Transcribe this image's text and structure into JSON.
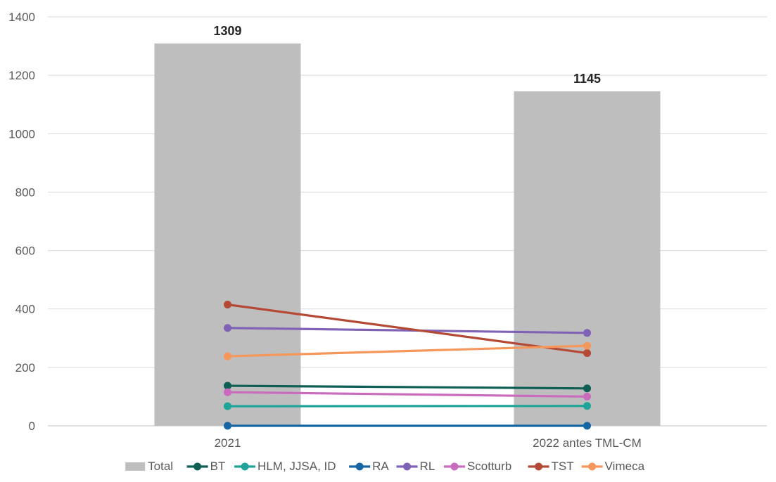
{
  "chart_data": {
    "type": "bar",
    "categories": [
      "2021",
      "2022 antes TML-CM"
    ],
    "ylim": [
      0,
      1400
    ],
    "yticks": [
      0,
      200,
      400,
      600,
      800,
      1000,
      1200,
      1400
    ],
    "grid": true,
    "legend_position": "bottom",
    "bar_series": {
      "name": "Total",
      "color": "#bfbebe",
      "values": [
        1309,
        1145
      ],
      "data_labels": [
        "1309",
        "1145"
      ]
    },
    "line_series": [
      {
        "name": "BT",
        "color": "#0f5f55",
        "values": [
          137,
          128
        ]
      },
      {
        "name": "HLM, JJSA, ID",
        "color": "#1fa49a",
        "values": [
          67,
          68
        ]
      },
      {
        "name": "RA",
        "color": "#1666a3",
        "values": [
          0,
          0
        ]
      },
      {
        "name": "RL",
        "color": "#7f62b5",
        "values": [
          335,
          318
        ]
      },
      {
        "name": "Scotturb",
        "color": "#c96cbd",
        "values": [
          115,
          100
        ]
      },
      {
        "name": "TST",
        "color": "#b44a35",
        "values": [
          415,
          249
        ]
      },
      {
        "name": "Vimeca",
        "color": "#f5975b",
        "values": [
          238,
          274
        ]
      }
    ]
  }
}
